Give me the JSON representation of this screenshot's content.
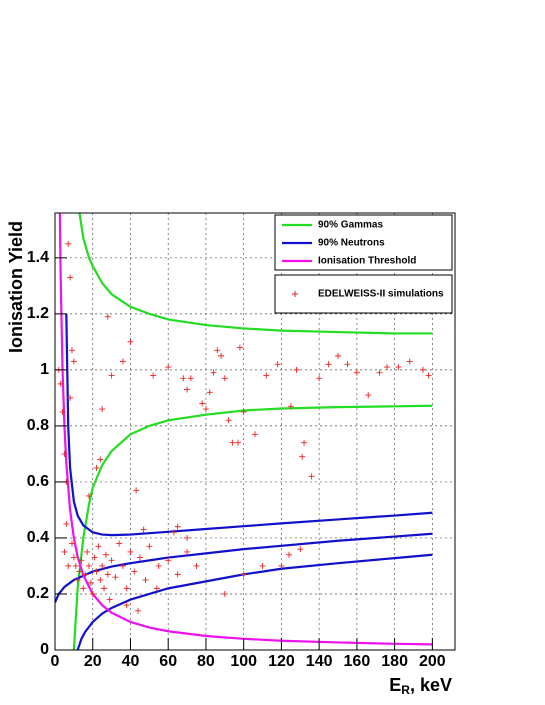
{
  "chart_data": {
    "type": "line",
    "y_label": "Ionisation Yield",
    "x_label": "E",
    "x_label_sub": "R",
    "x_label_rest": ", keV",
    "xlim": [
      0,
      212
    ],
    "ylim": [
      0,
      1.56
    ],
    "xticks": [
      0,
      20,
      40,
      60,
      80,
      100,
      120,
      140,
      160,
      180,
      200
    ],
    "yticks": [
      0,
      0.2,
      0.4,
      0.6,
      0.8,
      1,
      1.2,
      1.4
    ],
    "grid": true,
    "legend": "top-right",
    "series": [
      {
        "name": "90% Gammas",
        "color": "#22dd22",
        "x": [
          12,
          13,
          15,
          18,
          20,
          25,
          30,
          40,
          50,
          60,
          80,
          100,
          120,
          150,
          180,
          200
        ],
        "values": [
          1.7,
          1.56,
          1.47,
          1.4,
          1.37,
          1.31,
          1.27,
          1.225,
          1.2,
          1.18,
          1.16,
          1.148,
          1.14,
          1.135,
          1.13,
          1.13
        ]
      },
      {
        "name": "",
        "color": "#22dd22",
        "x": [
          10,
          12,
          15,
          18,
          20,
          25,
          30,
          40,
          50,
          60,
          80,
          100,
          120,
          150,
          180,
          200
        ],
        "values": [
          0,
          0.22,
          0.4,
          0.52,
          0.58,
          0.66,
          0.71,
          0.77,
          0.8,
          0.82,
          0.84,
          0.855,
          0.862,
          0.867,
          0.87,
          0.872
        ]
      },
      {
        "name": "90% Neutrons",
        "color": "#1111cc",
        "x": [
          6,
          7,
          8,
          10,
          12,
          15,
          20,
          25,
          30,
          40,
          60,
          80,
          100,
          120,
          150,
          180,
          200
        ],
        "values": [
          1.2,
          0.8,
          0.65,
          0.53,
          0.48,
          0.445,
          0.42,
          0.412,
          0.41,
          0.412,
          0.422,
          0.432,
          0.442,
          0.452,
          0.466,
          0.48,
          0.49
        ]
      },
      {
        "name": "",
        "color": "#1111cc",
        "x": [
          0,
          2,
          5,
          10,
          15,
          20,
          30,
          40,
          50,
          60,
          80,
          100,
          120,
          150,
          180,
          200
        ],
        "values": [
          0.17,
          0.2,
          0.225,
          0.25,
          0.265,
          0.28,
          0.298,
          0.31,
          0.32,
          0.33,
          0.345,
          0.36,
          0.372,
          0.39,
          0.405,
          0.415
        ]
      },
      {
        "name": "",
        "color": "#1111cc",
        "x": [
          12,
          14,
          16,
          20,
          25,
          30,
          40,
          50,
          60,
          80,
          100,
          120,
          150,
          180,
          200
        ],
        "values": [
          0,
          0.04,
          0.065,
          0.1,
          0.13,
          0.15,
          0.18,
          0.2,
          0.22,
          0.245,
          0.27,
          0.29,
          0.31,
          0.328,
          0.34
        ]
      },
      {
        "name": "Ionisation Threshold",
        "color": "#ee11ee",
        "x": [
          2.5,
          3,
          4,
          5,
          6,
          8,
          10,
          12,
          15,
          20,
          25,
          30,
          40,
          50,
          60,
          80,
          100,
          120,
          150,
          180,
          200
        ],
        "values": [
          1.6,
          1.33,
          1,
          0.8,
          0.667,
          0.5,
          0.4,
          0.333,
          0.267,
          0.2,
          0.16,
          0.133,
          0.1,
          0.08,
          0.067,
          0.05,
          0.04,
          0.033,
          0.027,
          0.022,
          0.02
        ]
      },
      {
        "name": "EDELWEISS-II simulations",
        "color": "#ee2222",
        "type": "scatter",
        "x": [
          2,
          3,
          4,
          5,
          6,
          7,
          8,
          9,
          10,
          8,
          6,
          5,
          7,
          9,
          10,
          11,
          12,
          13,
          14,
          15,
          16,
          17,
          18,
          19,
          20,
          21,
          22,
          23,
          24,
          25,
          26,
          27,
          28,
          29,
          30,
          32,
          34,
          36,
          38,
          40,
          42,
          45,
          48,
          50,
          55,
          60,
          65,
          70,
          75,
          22,
          24,
          18,
          36,
          40,
          30,
          28,
          25,
          43,
          47,
          44,
          38,
          52,
          60,
          68,
          72,
          70,
          78,
          80,
          82,
          84,
          86,
          88,
          90,
          92,
          94,
          97,
          98,
          100,
          106,
          112,
          118,
          125,
          128,
          131,
          132,
          136,
          140,
          145,
          150,
          155,
          160,
          166,
          172,
          176,
          182,
          188,
          195,
          198,
          90,
          100,
          110,
          120,
          124,
          130,
          63,
          65,
          70,
          54
        ],
        "values": [
          1.0,
          0.95,
          0.85,
          0.7,
          0.6,
          1.45,
          1.33,
          1.07,
          1.03,
          0.9,
          0.45,
          0.35,
          0.3,
          0.38,
          0.33,
          0.3,
          0.25,
          0.28,
          0.32,
          0.22,
          0.27,
          0.35,
          0.3,
          0.24,
          0.2,
          0.33,
          0.28,
          0.37,
          0.25,
          0.3,
          0.22,
          0.34,
          0.27,
          0.18,
          0.32,
          0.26,
          0.38,
          0.3,
          0.22,
          0.35,
          0.28,
          0.33,
          0.25,
          0.37,
          0.3,
          0.32,
          0.27,
          0.35,
          0.3,
          0.65,
          0.68,
          0.55,
          1.03,
          1.1,
          0.98,
          1.19,
          0.86,
          0.57,
          0.43,
          0.14,
          0.16,
          0.98,
          1.01,
          0.97,
          0.97,
          0.93,
          0.88,
          0.86,
          0.92,
          0.99,
          1.07,
          1.05,
          0.97,
          0.82,
          0.74,
          0.74,
          1.08,
          0.85,
          0.77,
          0.98,
          1.02,
          0.87,
          1.0,
          0.69,
          0.74,
          0.62,
          0.97,
          1.02,
          1.05,
          1.02,
          0.99,
          0.91,
          0.99,
          1.01,
          1.01,
          1.03,
          1.0,
          0.98,
          0.2,
          0.27,
          0.3,
          0.3,
          0.34,
          0.36,
          0.42,
          0.44,
          0.4,
          0.22
        ]
      }
    ]
  }
}
